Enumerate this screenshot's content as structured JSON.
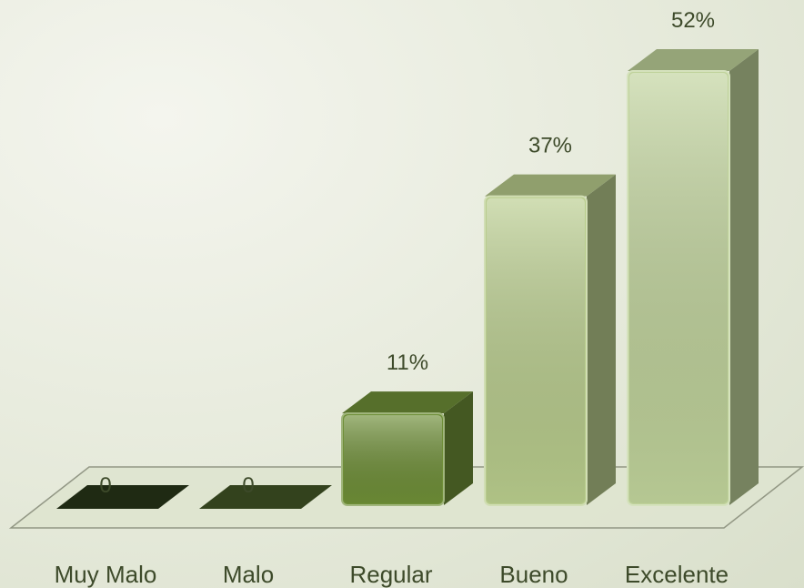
{
  "chart_data": {
    "type": "bar",
    "categories": [
      "Muy Malo",
      "Malo",
      "Regular",
      "Bueno",
      "Excelente"
    ],
    "values": [
      0,
      0,
      11,
      37,
      52
    ],
    "data_labels": [
      "0",
      "0",
      "11%",
      "37%",
      "52%"
    ],
    "ylim": [
      0,
      55
    ],
    "grid": false,
    "legend": "none",
    "three_d": true,
    "colors": [
      "#1f2a13",
      "#33421d",
      "#6e8e37",
      "#b8cc8c",
      "#bfd29a"
    ],
    "floor_color": "#dfe5d0",
    "background_color": "#e9ecdf"
  }
}
